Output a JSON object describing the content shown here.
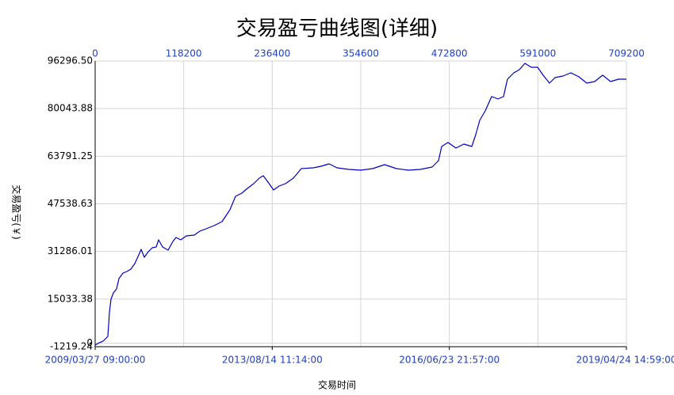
{
  "chart_data": {
    "type": "line",
    "title": "交易盈亏曲线图(详细)",
    "y_label": "交易盈亏(￥)",
    "x_label": "交易时间",
    "xlim": [
      0,
      709200
    ],
    "xticks": [
      0,
      118200,
      236400,
      354600,
      472800,
      591000,
      709200
    ],
    "xdate_ticks": [
      {
        "value": 0,
        "label": "2009/03/27 09:00:00"
      },
      {
        "value": 236400,
        "label": "2013/08/14 11:14:00"
      },
      {
        "value": 472800,
        "label": "2016/06/23 21:57:00"
      },
      {
        "value": 709200,
        "label": "2019/04/24 14:59:00"
      }
    ],
    "ylim": [
      -1219.24,
      96296.5
    ],
    "yticks": [
      -1219.24,
      0,
      15033.38,
      31286.01,
      47538.63,
      63791.25,
      80043.88,
      {
        "value": 96296.5,
        "label": "96296.50"
      }
    ],
    "grid": true,
    "series": [
      {
        "color": "#0000c0",
        "x": [
          0,
          5293,
          10585,
          16936,
          19053,
          21170,
          24346,
          28580,
          31755,
          37048,
          42340,
          47633,
          52925,
          58218,
          61393,
          65627,
          70920,
          76212,
          81505,
          84680,
          89973,
          97382,
          103733,
          107967,
          114318,
          121728,
          132313,
          139722,
          148190,
          158775,
          169360,
          179945,
          187355,
          195823,
          203232,
          211700,
          219110,
          224402,
          230753,
          238163,
          245572,
          254040,
          264625,
          275210,
          291088,
          301673,
          312258,
          322843,
          338720,
          354598,
          370475,
          386353,
          402230,
          418108,
          433985,
          449863,
          458331,
          462565,
          471033,
          481618,
          492203,
          502788,
          508080,
          513373,
          520782,
          529250,
          537718,
          545128,
          550420,
          558888,
          566298,
          573707,
          582175,
          590643,
          598053,
          606521,
          613930,
          624515,
          635100,
          645685,
          656270,
          666855,
          677440,
          688025,
          698610,
          709200
        ],
        "values": [
          -679,
          132,
          672,
          2293,
          10396,
          14989,
          17150,
          18500,
          22012,
          23903,
          24443,
          25253,
          27144,
          30116,
          32007,
          29305,
          31196,
          32547,
          32817,
          35248,
          32817,
          31736,
          34708,
          36058,
          35248,
          36599,
          36869,
          38219,
          39029,
          40110,
          41461,
          45513,
          50105,
          51186,
          52806,
          54427,
          56318,
          57128,
          54967,
          52266,
          53617,
          54427,
          56318,
          59560,
          59830,
          60370,
          61180,
          59830,
          59290,
          59019,
          59560,
          60910,
          59560,
          59019,
          59290,
          60100,
          62261,
          67123,
          68474,
          66583,
          67933,
          67123,
          71175,
          76037,
          79279,
          84141,
          83331,
          84141,
          90084,
          92245,
          93325,
          95486,
          94136,
          94136,
          91435,
          88733,
          90624,
          91164,
          92245,
          90894,
          88733,
          89273,
          91435,
          89273,
          90084,
          90084
        ]
      }
    ]
  }
}
